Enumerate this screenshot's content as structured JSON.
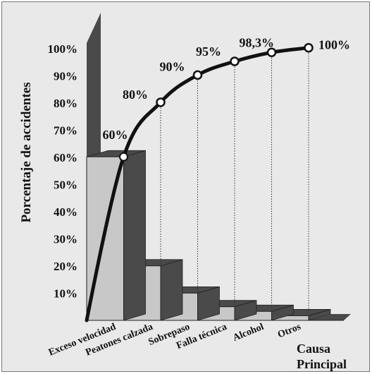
{
  "chart_data": {
    "type": "pareto",
    "ylabel": "Porcentaje de accidentes",
    "xlabel": "Causa Principal",
    "xlabel_lines": [
      "Causa",
      "Principal"
    ],
    "yticks": [
      "10%",
      "20%",
      "30%",
      "40%",
      "50%",
      "60%",
      "70%",
      "80%",
      "90%",
      "100%"
    ],
    "ylim": [
      0,
      100
    ],
    "categories": [
      "Exceso velocidad",
      "Peatones calzada",
      "Sobrepaso",
      "Falla técnica",
      "Alcohol",
      "Otros"
    ],
    "values": [
      60,
      20,
      10,
      5,
      3.3,
      1.7
    ],
    "cumulative": [
      60,
      80,
      90,
      95,
      98.3,
      100
    ],
    "cumulative_labels": [
      "60%",
      "80%",
      "90%",
      "95%",
      "98,3%",
      "100%"
    ],
    "grid": false,
    "colors": {
      "background": "#e9e9e9",
      "bar_front": "#c8c8c8",
      "bar_side": "#4a4a4a",
      "bar_top": "#4a4a4a",
      "wall": "#4a4a4a",
      "line": "#111111",
      "marker_fill": "#ffffff"
    }
  }
}
